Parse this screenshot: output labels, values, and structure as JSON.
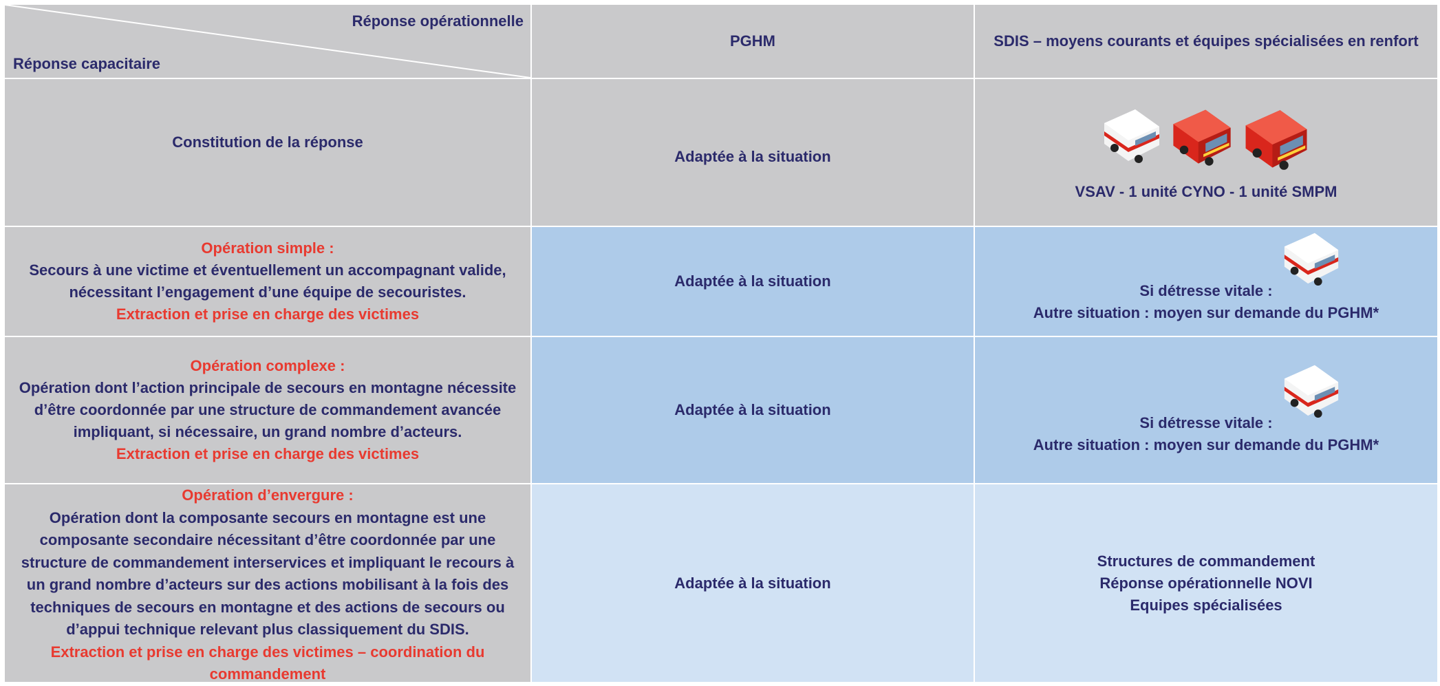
{
  "header": {
    "diagonal_top": "Réponse opérationnelle",
    "diagonal_bottom": "Réponse capacitaire",
    "columns": [
      "PGHM",
      "SDIS – moyens courants et équipes spécialisées en renfort"
    ]
  },
  "rows": [
    {
      "title": "Constitution de la réponse",
      "pghm": "Adaptée à la situation",
      "sdis": [
        "VSAV - 1 unité CYNO - 1 unité SMPM"
      ]
    },
    {
      "title": "Opération simple :",
      "description": "Secours à une victime et éventuellement un accompagnant valide, nécessitant l’engagement d’une équipe de secouristes.",
      "note": "Extraction et prise en charge des victimes",
      "pghm": "Adaptée à la situation",
      "sdis": [
        "Si détresse vitale :",
        "Autre situation : moyen sur demande du PGHM*"
      ]
    },
    {
      "title": "Opération complexe :",
      "description": "Opération dont l’action principale de secours en montagne nécessite d’être coordonnée par une structure de commandement avancée impliquant, si nécessaire, un grand nombre d’acteurs.",
      "note": "Extraction et prise en charge des victimes",
      "pghm": "Adaptée à la situation",
      "sdis": [
        "Si détresse vitale :",
        "Autre situation : moyen sur demande du PGHM*"
      ]
    },
    {
      "title": "Opération d’envergure :",
      "description": "Opération dont la composante secours en montagne est une composante secondaire nécessitant d’être coordonnée par une structure de commandement interservices et impliquant le recours à un grand nombre d’acteurs sur des actions mobilisant à la fois des techniques de secours en montagne et des actions de secours ou d’appui technique relevant plus classiquement du SDIS.",
      "note": "Extraction et prise en charge des victimes – coordination du commandement",
      "pghm": "Adaptée à la situation",
      "sdis": [
        "Structures de commandement",
        "Réponse opérationnelle NOVI",
        "Equipes spécialisées"
      ]
    }
  ]
}
